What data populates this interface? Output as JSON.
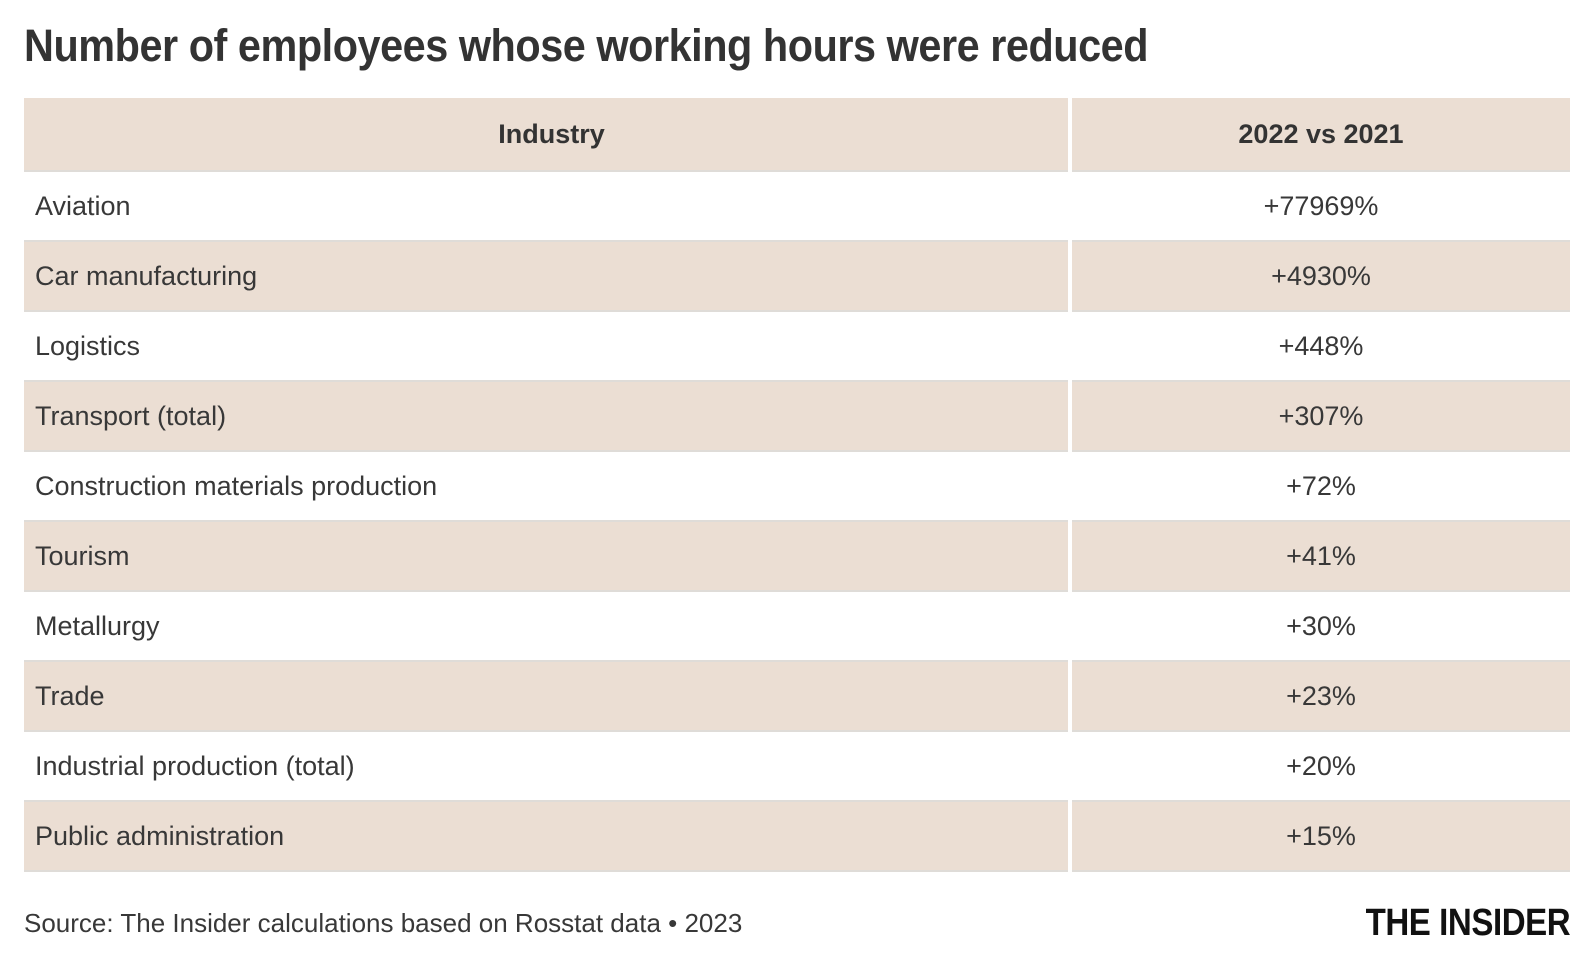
{
  "title": "Number of employees whose working hours were reduced",
  "table": {
    "columns": [
      "Industry",
      "2022 vs 2021"
    ],
    "rows": [
      {
        "industry": "Aviation",
        "change": "+77969%"
      },
      {
        "industry": "Car manufacturing",
        "change": "+4930%"
      },
      {
        "industry": "Logistics",
        "change": "+448%"
      },
      {
        "industry": "Transport (total)",
        "change": "+307%"
      },
      {
        "industry": "Construction materials production",
        "change": "+72%"
      },
      {
        "industry": "Tourism",
        "change": "+41%"
      },
      {
        "industry": "Metallurgy",
        "change": "+30%"
      },
      {
        "industry": "Trade",
        "change": "+23%"
      },
      {
        "industry": "Industrial production (total)",
        "change": "+20%"
      },
      {
        "industry": "Public administration",
        "change": "+15%"
      }
    ]
  },
  "footer": {
    "source": "Source: The Insider calculations based on Rosstat data • 2023",
    "logo": "THE INSIDER"
  },
  "colors": {
    "row_highlight": "#ebded3",
    "row_separator": "#dfdcd8",
    "text": "#383838",
    "title_text": "#333333",
    "logo_text": "#111111",
    "background": "#ffffff"
  },
  "chart_data": {
    "type": "table",
    "title": "Number of employees whose working hours were reduced",
    "columns": [
      "Industry",
      "2022 vs 2021"
    ],
    "categories": [
      "Aviation",
      "Car manufacturing",
      "Logistics",
      "Transport (total)",
      "Construction materials production",
      "Tourism",
      "Metallurgy",
      "Trade",
      "Industrial production (total)",
      "Public administration"
    ],
    "values_pct": [
      77969,
      4930,
      448,
      307,
      72,
      41,
      30,
      23,
      20,
      15
    ],
    "values_display": [
      "+77969%",
      "+4930%",
      "+448%",
      "+307%",
      "+72%",
      "+41%",
      "+30%",
      "+23%",
      "+20%",
      "+15%"
    ],
    "source": "Source: The Insider calculations based on Rosstat data • 2023",
    "layout": {
      "row_striping": true,
      "value_alignment": "center",
      "industry_alignment": "left"
    }
  }
}
